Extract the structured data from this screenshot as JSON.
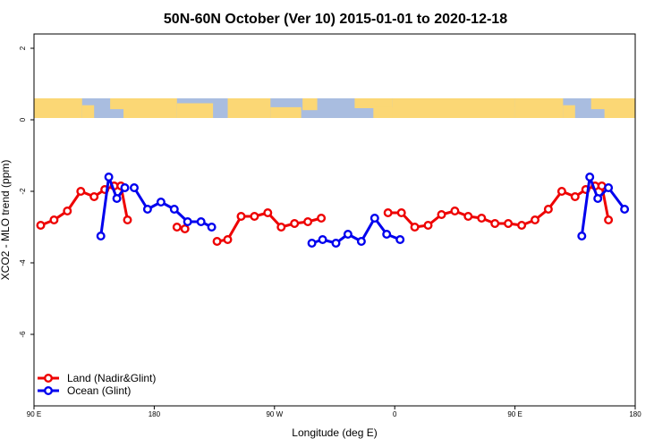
{
  "chart_data": {
    "type": "line",
    "title": "50N-60N October (Ver 10)   2015-01-01 to 2020-12-18",
    "xlabel": "Longitude (deg E)",
    "ylabel": "XCO2 - MLO trend (ppm)",
    "xlim": [
      90,
      540
    ],
    "ylim": [
      -8,
      2.4
    ],
    "x_ticks": [
      {
        "value": 90,
        "label": "90 E"
      },
      {
        "value": 180,
        "label": "180"
      },
      {
        "value": 270,
        "label": "90 W"
      },
      {
        "value": 360,
        "label": "0"
      },
      {
        "value": 450,
        "label": "90 E"
      },
      {
        "value": 540,
        "label": "180"
      }
    ],
    "y_ticks": [
      {
        "value": 2,
        "label": "2"
      },
      {
        "value": 0,
        "label": "0"
      },
      {
        "value": -2,
        "label": "-2"
      },
      {
        "value": -4,
        "label": "-4"
      },
      {
        "value": -6,
        "label": "-6"
      }
    ],
    "map_strip": {
      "y_top": 0.6,
      "y_bottom": 0.05
    },
    "legend_position": "bottom-left",
    "series": [
      {
        "name": "Land (Nadir&Glint)",
        "color": "#ee0000",
        "segments": [
          [
            [
              95,
              -2.95
            ],
            [
              105,
              -2.8
            ],
            [
              115,
              -2.55
            ],
            [
              125,
              -2.0
            ],
            [
              135,
              -2.15
            ],
            [
              143,
              -1.95
            ],
            [
              150,
              -1.85
            ],
            [
              155,
              -1.85
            ],
            [
              160,
              -2.8
            ]
          ],
          [
            [
              197,
              -3.0
            ],
            [
              203,
              -3.05
            ]
          ],
          [
            [
              227,
              -3.4
            ],
            [
              235,
              -3.35
            ],
            [
              245,
              -2.7
            ],
            [
              255,
              -2.7
            ],
            [
              265,
              -2.6
            ],
            [
              275,
              -3.0
            ],
            [
              285,
              -2.9
            ],
            [
              295,
              -2.85
            ],
            [
              305,
              -2.75
            ]
          ],
          [
            [
              355,
              -2.6
            ],
            [
              365,
              -2.6
            ],
            [
              375,
              -3.0
            ],
            [
              385,
              -2.95
            ],
            [
              395,
              -2.65
            ],
            [
              405,
              -2.55
            ],
            [
              415,
              -2.7
            ],
            [
              425,
              -2.75
            ],
            [
              435,
              -2.9
            ],
            [
              445,
              -2.9
            ],
            [
              455,
              -2.95
            ],
            [
              465,
              -2.8
            ],
            [
              475,
              -2.5
            ],
            [
              485,
              -2.0
            ],
            [
              495,
              -2.15
            ],
            [
              503,
              -1.95
            ],
            [
              510,
              -1.85
            ],
            [
              515,
              -1.85
            ],
            [
              520,
              -2.8
            ]
          ]
        ]
      },
      {
        "name": "Ocean (Glint)",
        "color": "#0000ee",
        "segments": [
          [
            [
              140,
              -3.25
            ],
            [
              146,
              -1.6
            ],
            [
              152,
              -2.2
            ],
            [
              158,
              -1.9
            ]
          ],
          [
            [
              165,
              -1.9
            ],
            [
              175,
              -2.5
            ],
            [
              185,
              -2.3
            ],
            [
              195,
              -2.5
            ],
            [
              205,
              -2.85
            ],
            [
              215,
              -2.85
            ],
            [
              223,
              -3.0
            ]
          ],
          [
            [
              298,
              -3.45
            ],
            [
              306,
              -3.35
            ],
            [
              316,
              -3.45
            ],
            [
              325,
              -3.2
            ],
            [
              335,
              -3.4
            ],
            [
              345,
              -2.75
            ],
            [
              354,
              -3.2
            ],
            [
              364,
              -3.35
            ]
          ],
          [
            [
              500,
              -3.25
            ],
            [
              506,
              -1.6
            ],
            [
              512,
              -2.2
            ],
            [
              520,
              -1.9
            ],
            [
              532,
              -2.5
            ]
          ]
        ]
      }
    ]
  }
}
